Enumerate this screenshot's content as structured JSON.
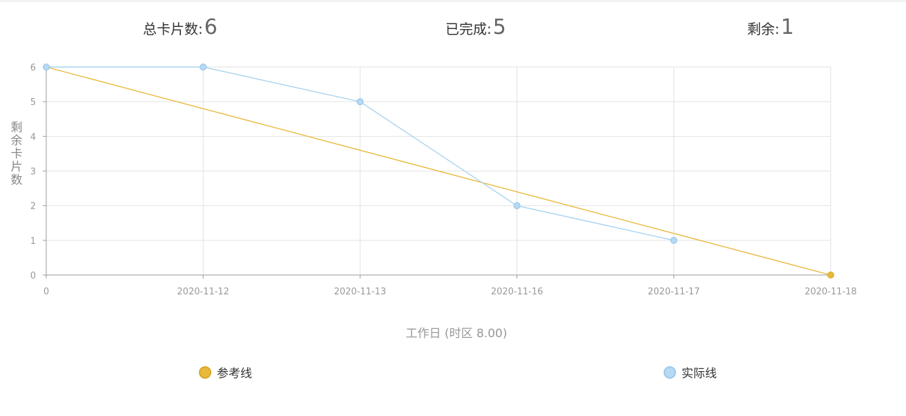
{
  "stats": {
    "total_label": "总卡片数:",
    "total_value": "6",
    "done_label": "已完成:",
    "done_value": "5",
    "remain_label": "剩余:",
    "remain_value": "1"
  },
  "colors": {
    "reference": "#e8b93a",
    "actual": "#a9d3f0",
    "actual_fill": "#b7d9f3",
    "grid": "#e2e2e2",
    "axis": "#999999"
  },
  "chart_data": {
    "type": "line",
    "categories": [
      "0",
      "2020-11-12",
      "2020-11-13",
      "2020-11-16",
      "2020-11-17",
      "2020-11-18"
    ],
    "xlabel": "工作日 (时区 8.00)",
    "ylabel": "剩余卡片数",
    "ylim": [
      0,
      6
    ],
    "yticks": [
      0,
      1,
      2,
      3,
      4,
      5,
      6
    ],
    "grid": true,
    "legend_position": "bottom",
    "series": [
      {
        "name": "参考线",
        "values": [
          6,
          null,
          null,
          null,
          null,
          0
        ],
        "color": "#e8b93a"
      },
      {
        "name": "实际线",
        "values": [
          6,
          6,
          5,
          2,
          1,
          null
        ],
        "color": "#a9d3f0"
      }
    ]
  },
  "legend": {
    "reference_label": "参考线",
    "actual_label": "实际线"
  }
}
